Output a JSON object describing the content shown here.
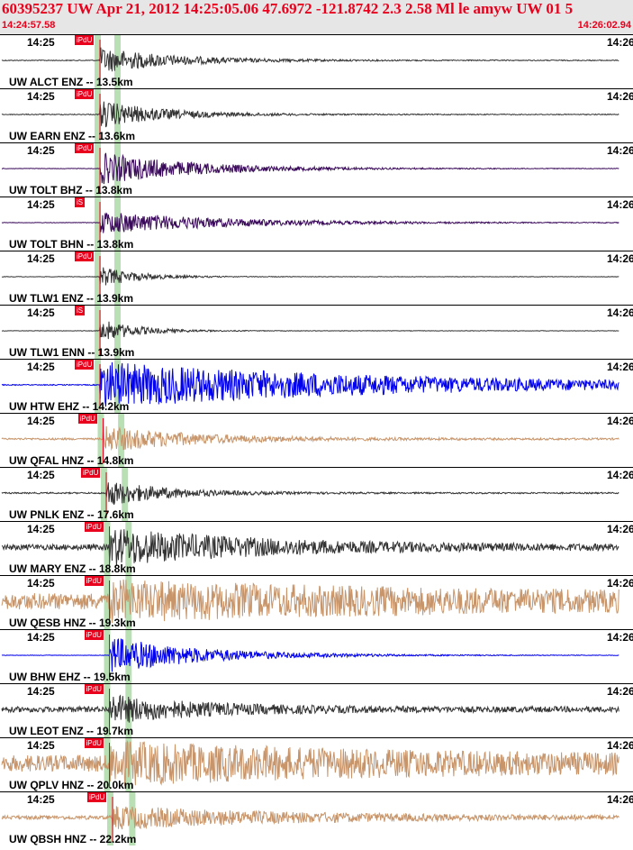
{
  "header": {
    "title": "60395237 UW Apr 21, 2012 14:25:05.06   47.6972 -121.8742  2.3 2.58 Ml le amyw UW 01   5",
    "start_time": "14:24:57.58",
    "end_time": "14:26:02.94"
  },
  "colors": {
    "header_text": "#e8001c",
    "pick": "#e8001c",
    "pick_window": "#b9e0b4",
    "black_trace": "#333333",
    "blue_trace": "#0000ee",
    "tan_trace": "#c8956a",
    "purple_trace": "#3a0a5a"
  },
  "panels": [
    {
      "label": "UW ALCT ENZ -- 13.5km",
      "time_left": "14:25",
      "time_right": "14:26",
      "pick": "iPdU",
      "color": "black",
      "amp": 0.55,
      "onset": 0.16,
      "decay": 0.12,
      "noise": 0.02
    },
    {
      "label": "UW EARN ENZ -- 13.6km",
      "time_left": "14:25",
      "time_right": "14:26",
      "pick": "iPdU",
      "color": "black",
      "amp": 0.6,
      "onset": 0.16,
      "decay": 0.1,
      "noise": 0.02
    },
    {
      "label": "UW TOLT BHZ -- 13.8km",
      "time_left": "14:25",
      "time_right": "14:26",
      "pick": "iPdU",
      "color": "purple",
      "amp": 0.7,
      "onset": 0.16,
      "decay": 0.15,
      "noise": 0.01
    },
    {
      "label": "UW TOLT BHN -- 13.8km",
      "time_left": "14:25",
      "time_right": "14:26",
      "pick": "iS",
      "color": "purple",
      "amp": 0.5,
      "onset": 0.16,
      "decay": 0.2,
      "noise": 0.01
    },
    {
      "label": "UW TLW1 ENZ -- 13.9km",
      "time_left": "14:25",
      "time_right": "14:26",
      "pick": "iPdU",
      "color": "black",
      "amp": 0.45,
      "onset": 0.16,
      "decay": 0.06,
      "noise": 0.01
    },
    {
      "label": "UW TLW1 ENN -- 13.9km",
      "time_left": "14:25",
      "time_right": "14:26",
      "pick": "iS",
      "color": "black",
      "amp": 0.5,
      "onset": 0.16,
      "decay": 0.06,
      "noise": 0.01
    },
    {
      "label": "UW HTW EHZ -- 14.2km",
      "time_left": "14:25",
      "time_right": "14:26",
      "pick": "iPdU",
      "color": "blue",
      "amp": 1.0,
      "onset": 0.16,
      "decay": 0.5,
      "noise": 0.02
    },
    {
      "label": "UW QFAL HNZ -- 14.8km",
      "time_left": "14:25",
      "time_right": "14:26",
      "pick": "iPdU",
      "color": "tan",
      "amp": 0.55,
      "onset": 0.165,
      "decay": 0.15,
      "noise": 0.04
    },
    {
      "label": "UW PNLK ENZ -- 17.6km",
      "time_left": "14:25",
      "time_right": "14:26",
      "pick": "iPdU",
      "color": "black",
      "amp": 0.55,
      "onset": 0.17,
      "decay": 0.1,
      "noise": 0.03
    },
    {
      "label": "UW MARY ENZ -- 18.8km",
      "time_left": "14:25",
      "time_right": "14:26",
      "pick": "iPdU",
      "color": "black",
      "amp": 0.75,
      "onset": 0.175,
      "decay": 0.25,
      "noise": 0.12
    },
    {
      "label": "UW QESB HNZ -- 19.3km",
      "time_left": "14:25",
      "time_right": "14:26",
      "pick": "iPdU",
      "color": "tan",
      "amp": 0.6,
      "onset": 0.175,
      "decay": 0.6,
      "noise": 0.35
    },
    {
      "label": "UW BHW EHZ -- 19.5km",
      "time_left": "14:25",
      "time_right": "14:26",
      "pick": "iPdU",
      "color": "blue",
      "amp": 0.8,
      "onset": 0.175,
      "decay": 0.15,
      "noise": 0.01
    },
    {
      "label": "UW LEOT ENZ -- 19.7km",
      "time_left": "14:25",
      "time_right": "14:26",
      "pick": "iPdU",
      "color": "black",
      "amp": 0.55,
      "onset": 0.175,
      "decay": 0.15,
      "noise": 0.12
    },
    {
      "label": "UW QPLV HNZ -- 20.0km",
      "time_left": "14:25",
      "time_right": "14:26",
      "pick": "iPdU",
      "color": "tan",
      "amp": 0.65,
      "onset": 0.175,
      "decay": 0.5,
      "noise": 0.35
    },
    {
      "label": "UW QBSH HNZ -- 22.2km",
      "time_left": "14:25",
      "time_right": "14:26",
      "pick": "iPdU",
      "color": "tan",
      "amp": 0.45,
      "onset": 0.18,
      "decay": 0.3,
      "noise": 0.08
    }
  ]
}
